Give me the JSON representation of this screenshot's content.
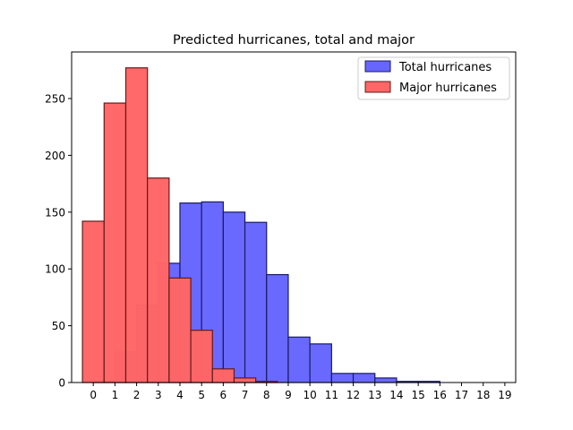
{
  "chart_data": {
    "type": "bar",
    "title": "Predicted hurricanes, total and major",
    "xlabel": "",
    "ylabel": "",
    "x_ticks": [
      "0",
      "1",
      "2",
      "3",
      "4",
      "5",
      "6",
      "7",
      "8",
      "9",
      "10",
      "11",
      "12",
      "13",
      "14",
      "15",
      "16",
      "17",
      "18",
      "19"
    ],
    "y_ticks": [
      "0",
      "50",
      "100",
      "150",
      "200",
      "250"
    ],
    "xlim": [
      -1.0,
      19.5
    ],
    "ylim": [
      0,
      291
    ],
    "legend_position": "top-right",
    "grid": false,
    "series": [
      {
        "name": "Total hurricanes",
        "color": "#6666ff",
        "edge": "#1a1a66",
        "bins": [
          {
            "from": 0.0,
            "to": 1.0,
            "value": 1
          },
          {
            "from": 1.0,
            "to": 2.0,
            "value": 27
          },
          {
            "from": 2.0,
            "to": 3.0,
            "value": 68
          },
          {
            "from": 3.0,
            "to": 4.0,
            "value": 105
          },
          {
            "from": 4.0,
            "to": 5.0,
            "value": 158
          },
          {
            "from": 5.0,
            "to": 6.0,
            "value": 159
          },
          {
            "from": 6.0,
            "to": 7.0,
            "value": 150
          },
          {
            "from": 7.0,
            "to": 8.0,
            "value": 141
          },
          {
            "from": 8.0,
            "to": 9.0,
            "value": 95
          },
          {
            "from": 9.0,
            "to": 10.0,
            "value": 40
          },
          {
            "from": 10.0,
            "to": 11.0,
            "value": 34
          },
          {
            "from": 11.0,
            "to": 12.0,
            "value": 8
          },
          {
            "from": 12.0,
            "to": 13.0,
            "value": 8
          },
          {
            "from": 13.0,
            "to": 14.0,
            "value": 4
          },
          {
            "from": 14.0,
            "to": 15.0,
            "value": 1
          },
          {
            "from": 15.0,
            "to": 16.0,
            "value": 1
          },
          {
            "from": 16.0,
            "to": 17.0,
            "value": 0
          },
          {
            "from": 17.0,
            "to": 18.0,
            "value": 0
          },
          {
            "from": 18.0,
            "to": 19.0,
            "value": 0
          }
        ]
      },
      {
        "name": "Major hurricanes",
        "color": "#ff6666",
        "edge": "#661a1a",
        "bins": [
          {
            "from": -0.5,
            "to": 0.5,
            "value": 142
          },
          {
            "from": 0.5,
            "to": 1.5,
            "value": 246
          },
          {
            "from": 1.5,
            "to": 2.5,
            "value": 277
          },
          {
            "from": 2.5,
            "to": 3.5,
            "value": 180
          },
          {
            "from": 3.5,
            "to": 4.5,
            "value": 92
          },
          {
            "from": 4.5,
            "to": 5.5,
            "value": 46
          },
          {
            "from": 5.5,
            "to": 6.5,
            "value": 12
          },
          {
            "from": 6.5,
            "to": 7.5,
            "value": 4
          },
          {
            "from": 7.5,
            "to": 8.5,
            "value": 1
          }
        ]
      }
    ]
  }
}
